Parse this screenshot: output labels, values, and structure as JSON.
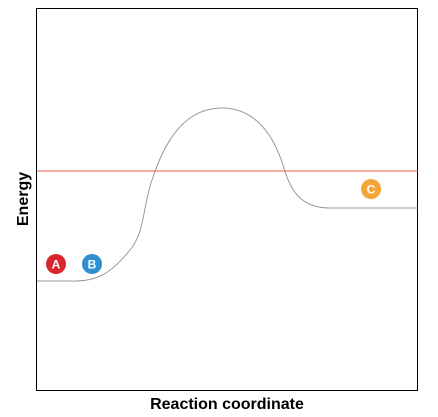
{
  "diagram": {
    "xlabel": "Reaction coordinate",
    "ylabel": "Energy",
    "colors": {
      "frame": "#000000",
      "curve": "#9a9a9a",
      "threshold_line": "#ef5a4f"
    },
    "markers": [
      {
        "label": "A",
        "color": "#d8262f"
      },
      {
        "label": "B",
        "color": "#2f8fd0"
      },
      {
        "label": "C",
        "color": "#f4a53a"
      }
    ]
  }
}
